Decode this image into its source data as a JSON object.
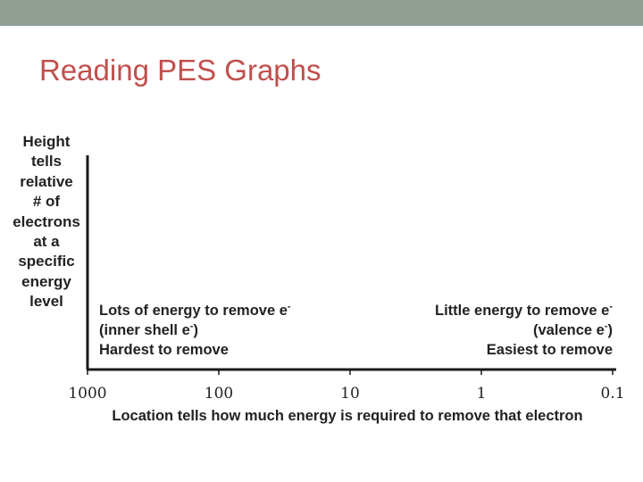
{
  "slide": {
    "title": "Reading PES Graphs",
    "header_color": "#909e94",
    "title_color": "#c0504d"
  },
  "chart_data": {
    "type": "line",
    "x_scale": "log",
    "x_direction": "decreasing",
    "xlim": [
      1000,
      0.1
    ],
    "tick_labels": [
      "1000",
      "100",
      "10",
      "1",
      "0.1"
    ],
    "xlabel": "Location tells how much energy is required to remove that electron",
    "ylabel_lines": [
      "Height",
      "tells",
      "relative",
      "# of",
      "electrons",
      "at a",
      "specific",
      "energy",
      "level"
    ],
    "series": [],
    "grid": false
  },
  "annotations": {
    "left": {
      "line1": "Lots of energy to remove e",
      "line1_sup": "-",
      "line2_pre": "(inner shell e",
      "line2_sup": "-",
      "line2_post": ")",
      "line3": "Hardest to remove"
    },
    "right": {
      "line1": "Little energy to remove e",
      "line1_sup": "-",
      "line2_pre": "(valence e",
      "line2_sup": "-",
      "line2_post": ")",
      "line3": "Easiest to remove"
    }
  }
}
